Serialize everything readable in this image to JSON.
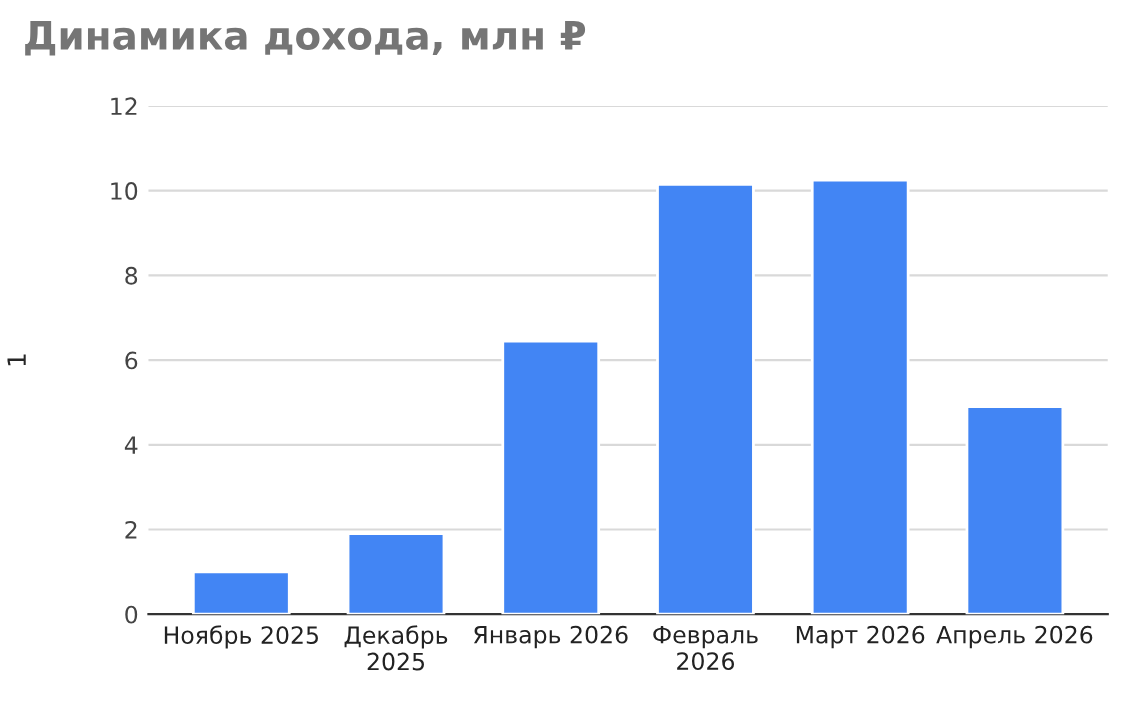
{
  "chart_data": {
    "type": "bar",
    "title": "Динамика дохода, млн ₽",
    "ylabel": "1",
    "categories": [
      "Ноябрь 2025",
      "Декабрь 2025",
      "Январь 2026",
      "Февраль 2026",
      "Март 2026",
      "Апрель 2026"
    ],
    "values": [
      1.0,
      1.9,
      6.45,
      10.15,
      10.25,
      4.9
    ],
    "color": "#4285f4",
    "ylim": [
      0,
      12
    ],
    "yticks": [
      0,
      2,
      4,
      6,
      8,
      10,
      12
    ],
    "grid": "y",
    "legend": false
  }
}
